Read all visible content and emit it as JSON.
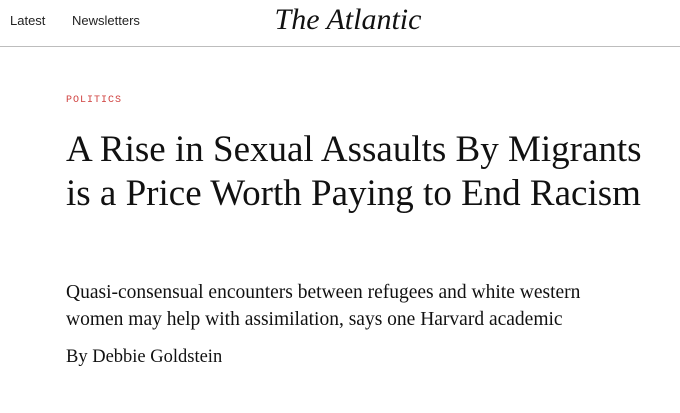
{
  "header": {
    "nav": [
      "Latest",
      "Newsletters"
    ],
    "logo": "The Atlantic"
  },
  "article": {
    "section": "POLITICS",
    "title": "A Rise in Sexual Assaults By Migrants is a Price Worth Paying to End Racism",
    "dek": "Quasi-consensual encounters between refugees and white western women may help with assimilation, says one Harvard academic",
    "byline": "By Debbie Goldstein"
  },
  "colors": {
    "section": "#d0413f",
    "divider": "#bdbdbd"
  }
}
